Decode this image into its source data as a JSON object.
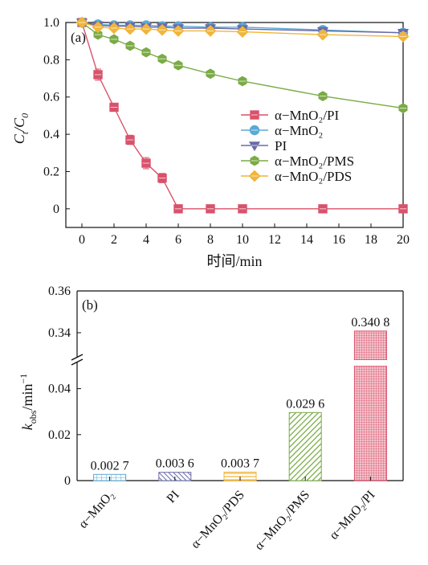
{
  "chart_data": [
    {
      "type": "line",
      "panel_label": "(a)",
      "xlabel": "时间/min",
      "ylabel": "C_t/C_0",
      "ylabel_main": "C",
      "ylabel_sub1": "t",
      "ylabel_sep": "/C",
      "ylabel_sub2": "0",
      "xlim": [
        -1,
        20
      ],
      "ylim": [
        -0.1,
        1.0
      ],
      "xticks": [
        0,
        2,
        4,
        6,
        8,
        10,
        12,
        14,
        16,
        18,
        20
      ],
      "yticks": [
        0,
        0.2,
        0.4,
        0.6,
        0.8,
        1.0
      ],
      "ytick_labels": [
        "0",
        "0.2",
        "0.4",
        "0.6",
        "0.8",
        "1.0"
      ],
      "legend_position": "center-right",
      "series": [
        {
          "name": "α−MnO₂/PI",
          "color": "#d9526b",
          "marker": "square",
          "x": [
            0,
            1,
            2,
            3,
            4,
            5,
            6,
            8,
            10,
            15,
            20
          ],
          "y": [
            1.0,
            0.72,
            0.545,
            0.37,
            0.245,
            0.165,
            0.0,
            0.0,
            0.0,
            0.0,
            0.0
          ],
          "err": [
            0.01,
            0.03,
            0.015,
            0.025,
            0.03,
            0.025,
            0,
            0,
            0,
            0,
            0
          ]
        },
        {
          "name": "α−MnO₂",
          "color": "#5aa9d6",
          "marker": "circle",
          "x": [
            0,
            1,
            2,
            3,
            4,
            5,
            6,
            8,
            10,
            15,
            20
          ],
          "y": [
            1.0,
            0.99,
            0.985,
            0.985,
            0.985,
            0.98,
            0.98,
            0.975,
            0.975,
            0.96,
            0.945
          ]
        },
        {
          "name": "PI",
          "color": "#6b6ba8",
          "marker": "triangle-down",
          "x": [
            0,
            1,
            2,
            3,
            4,
            5,
            6,
            8,
            10,
            15,
            20
          ],
          "y": [
            1.0,
            0.985,
            0.98,
            0.98,
            0.975,
            0.975,
            0.97,
            0.97,
            0.965,
            0.955,
            0.945
          ]
        },
        {
          "name": "α−MnO₂/PMS",
          "color": "#7aab45",
          "marker": "hexagon",
          "x": [
            0,
            1,
            2,
            3,
            4,
            5,
            6,
            8,
            10,
            15,
            20
          ],
          "y": [
            1.0,
            0.935,
            0.91,
            0.875,
            0.84,
            0.805,
            0.77,
            0.725,
            0.685,
            0.605,
            0.54
          ]
        },
        {
          "name": "α−MnO₂/PDS",
          "color": "#f1b53a",
          "marker": "diamond",
          "x": [
            0,
            1,
            2,
            3,
            4,
            5,
            6,
            8,
            10,
            15,
            20
          ],
          "y": [
            1.0,
            0.975,
            0.97,
            0.965,
            0.965,
            0.96,
            0.955,
            0.955,
            0.95,
            0.935,
            0.925
          ]
        }
      ]
    },
    {
      "type": "bar",
      "panel_label": "(b)",
      "ylabel": "k_obs/min⁻¹",
      "ylabel_main": "k",
      "ylabel_sub": "obs",
      "ylabel_unit": "/min",
      "ylabel_sup": "−1",
      "broken_axis": true,
      "ylim_lower": [
        0,
        0.05
      ],
      "ylim_upper": [
        0.33,
        0.36
      ],
      "yticks_lower": [
        0,
        0.02,
        0.04
      ],
      "yticks_lower_labels": [
        "0",
        "0.02",
        "0.04"
      ],
      "yticks_upper": [
        0.34,
        0.36
      ],
      "yticks_upper_labels": [
        "0.34",
        "0.36"
      ],
      "categories": [
        "α−MnO₂",
        "PI",
        "α−MnO₂/PDS",
        "α−MnO₂/PMS",
        "α−MnO₂/PI"
      ],
      "values": [
        0.0027,
        0.0036,
        0.0037,
        0.0296,
        0.3408
      ],
      "value_labels": [
        "0.002 7",
        "0.003 6",
        "0.003 7",
        "0.029 6",
        "0.340 8"
      ],
      "colors": [
        "#5aa9d6",
        "#6b6ba8",
        "#f1b53a",
        "#7aab45",
        "#d9526b"
      ],
      "patterns": [
        "grid",
        "diag-back",
        "horizontal",
        "diag-fwd",
        "dense"
      ]
    }
  ]
}
